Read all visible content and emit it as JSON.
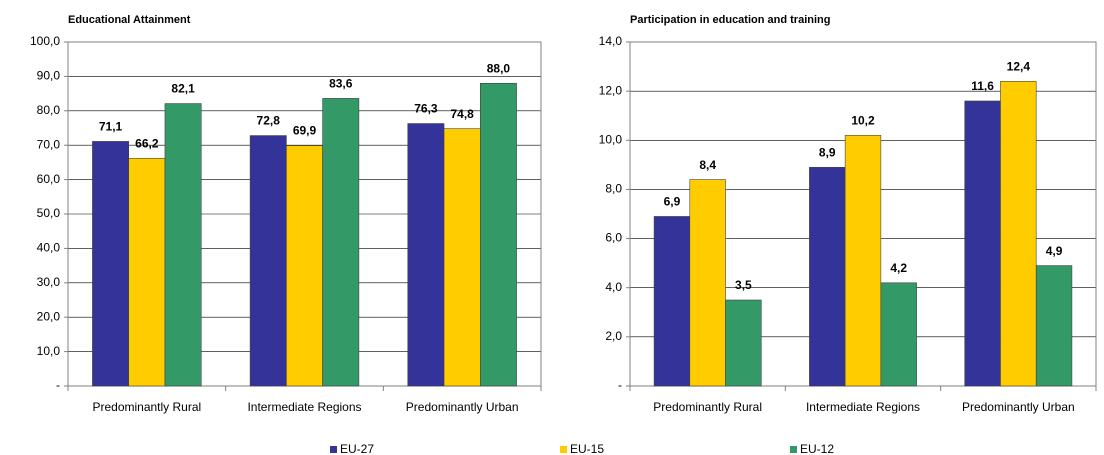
{
  "chart_data": [
    {
      "type": "bar",
      "title": "Educational Attainment",
      "categories": [
        "Predominantly Rural",
        "Intermediate Regions",
        "Predominantly Urban"
      ],
      "series": [
        {
          "name": "EU-27",
          "color": "#333399",
          "values": [
            71.1,
            72.8,
            76.3
          ],
          "value_labels": [
            "71,1",
            "72,8",
            "76,3"
          ]
        },
        {
          "name": "EU-15",
          "color": "#ffcc00",
          "values": [
            66.2,
            69.9,
            74.8
          ],
          "value_labels": [
            "66,2",
            "69,9",
            "74,8"
          ]
        },
        {
          "name": "EU-12",
          "color": "#339966",
          "values": [
            82.1,
            83.6,
            88.0
          ],
          "value_labels": [
            "82,1",
            "83,6",
            "88,0"
          ]
        }
      ],
      "ylim": [
        0,
        100
      ],
      "yticks": [
        {
          "value": 0,
          "label": "-"
        },
        {
          "value": 10,
          "label": "10,0"
        },
        {
          "value": 20,
          "label": "20,0"
        },
        {
          "value": 30,
          "label": "30,0"
        },
        {
          "value": 40,
          "label": "40,0"
        },
        {
          "value": 50,
          "label": "50,0"
        },
        {
          "value": 60,
          "label": "60,0"
        },
        {
          "value": 70,
          "label": "70,0"
        },
        {
          "value": 80,
          "label": "80,0"
        },
        {
          "value": 90,
          "label": "90,0"
        },
        {
          "value": 100,
          "label": "100,0"
        }
      ],
      "grid": true
    },
    {
      "type": "bar",
      "title": "Participation in education and training",
      "categories": [
        "Predominantly Rural",
        "Intermediate Regions",
        "Predominantly Urban"
      ],
      "series": [
        {
          "values": [
            6.9,
            8.9,
            11.6
          ],
          "value_labels": [
            "6,9",
            "8,9",
            "11,6"
          ]
        },
        {
          "values": [
            8.4,
            10.2,
            12.4
          ],
          "value_labels": [
            "8,4",
            "10,2",
            "12,4"
          ]
        },
        {
          "values": [
            3.5,
            4.2,
            4.9
          ],
          "value_labels": [
            "3,5",
            "4,2",
            "4,9"
          ]
        }
      ],
      "ylim": [
        0,
        14
      ],
      "yticks": [
        {
          "value": 0,
          "label": "-"
        },
        {
          "value": 2,
          "label": "2,0"
        },
        {
          "value": 4,
          "label": "4,0"
        },
        {
          "value": 6,
          "label": "6,0"
        },
        {
          "value": 8,
          "label": "8,0"
        },
        {
          "value": 10,
          "label": "10,0"
        },
        {
          "value": 12,
          "label": "12,0"
        },
        {
          "value": 14,
          "label": "14,0"
        }
      ],
      "grid": true
    }
  ]
}
